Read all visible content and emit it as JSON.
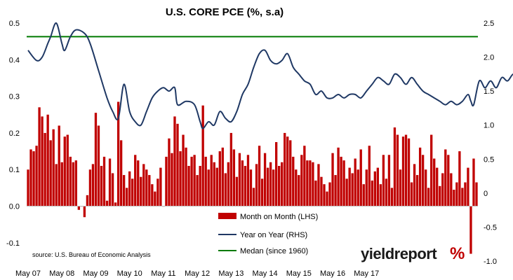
{
  "chart_data": {
    "type": "bar",
    "title": "U.S. CORE PCE (%, s.a)",
    "source": "source: U.S. Bureau of Economic Analysis",
    "logo": {
      "text": "yieldreport",
      "symbol": "%",
      "text_color": "#1a1a1a",
      "symbol_color": "#c00000",
      "symbol_accent": "#1e9e3a"
    },
    "colors": {
      "bars": "#c00000",
      "yoy": "#1f3864",
      "median": "#007a00"
    },
    "y_left": {
      "min": -0.15,
      "max": 0.5,
      "ticks": [
        "-0.1",
        "0.0",
        "0.1",
        "0.2",
        "0.3",
        "0.4",
        "0.5"
      ],
      "tick_values": [
        -0.1,
        0,
        0.1,
        0.2,
        0.3,
        0.4,
        0.5
      ]
    },
    "y_right": {
      "min": -1.0,
      "max": 2.5,
      "ticks": [
        "-1.0",
        "-0.5",
        "0",
        "0.5",
        "1.0",
        "1.5",
        "2.0",
        "2.5"
      ],
      "tick_values": [
        -1.0,
        -0.5,
        0,
        0.5,
        1.0,
        1.5,
        2.0,
        2.5
      ]
    },
    "x_ticks": [
      "May 07",
      "May 08",
      "May 09",
      "May 10",
      "May 11",
      "May 12",
      "May 13",
      "May 14",
      "May 15",
      "May 16",
      "May 17"
    ],
    "x_start": "2007-05",
    "series": [
      {
        "name": "Month on Month (LHS)",
        "kind": "bar",
        "values": [
          0.1,
          0.155,
          0.15,
          0.165,
          0.27,
          0.245,
          0.2,
          0.25,
          0.18,
          0.21,
          0.115,
          0.22,
          0.12,
          0.19,
          0.195,
          0.135,
          0.12,
          0.125,
          -0.01,
          0.0,
          -0.03,
          0.03,
          0.1,
          0.115,
          0.255,
          0.22,
          0.11,
          0.135,
          0.015,
          0.13,
          0.09,
          0.01,
          0.285,
          0.18,
          0.085,
          0.05,
          0.095,
          0.075,
          0.14,
          0.125,
          0.08,
          0.115,
          0.1,
          0.085,
          0.06,
          0.04,
          0.075,
          0.105,
          0.0,
          0.135,
          0.185,
          0.145,
          0.245,
          0.225,
          0.15,
          0.195,
          0.16,
          0.11,
          0.135,
          0.14,
          0.085,
          0.11,
          0.275,
          0.135,
          0.1,
          0.14,
          0.12,
          0.105,
          0.15,
          0.16,
          0.09,
          0.12,
          0.2,
          0.155,
          0.08,
          0.145,
          0.125,
          0.11,
          0.14,
          0.1,
          0.05,
          0.115,
          0.165,
          0.075,
          0.145,
          0.105,
          0.12,
          0.1,
          0.175,
          0.11,
          0.12,
          0.2,
          0.19,
          0.18,
          0.135,
          0.1,
          0.085,
          0.14,
          0.165,
          0.125,
          0.125,
          0.12,
          0.07,
          0.115,
          0.08,
          0.06,
          0.04,
          0.065,
          0.145,
          0.085,
          0.16,
          0.135,
          0.125,
          0.075,
          0.105,
          0.09,
          0.13,
          0.1,
          0.155,
          0.06,
          0.1,
          0.165,
          0.07,
          0.095,
          0.105,
          0.06,
          0.14,
          0.075,
          0.14,
          0.05,
          0.215,
          0.195,
          0.1,
          0.19,
          0.195,
          0.185,
          0.065,
          0.115,
          0.085,
          0.16,
          0.14,
          0.1,
          0.05,
          0.195,
          0.13,
          0.105,
          0.055,
          0.09,
          0.155,
          0.14,
          0.09,
          0.045,
          0.065,
          0.15,
          0.05,
          0.065,
          0.105,
          -0.13,
          0.13,
          0.065
        ]
      },
      {
        "name": "Year on Year (RHS)",
        "kind": "line",
        "points": [
          [
            0,
            2.1
          ],
          [
            3,
            1.95
          ],
          [
            5,
            2.0
          ],
          [
            7,
            2.2
          ],
          [
            8,
            2.3
          ],
          [
            10,
            2.5
          ],
          [
            12,
            2.2
          ],
          [
            13,
            2.1
          ],
          [
            15,
            2.3
          ],
          [
            17,
            2.4
          ],
          [
            20,
            2.35
          ],
          [
            22,
            2.2
          ],
          [
            25,
            1.8
          ],
          [
            28,
            1.4
          ],
          [
            30,
            1.2
          ],
          [
            32,
            1.1
          ],
          [
            34,
            1.6
          ],
          [
            36,
            1.2
          ],
          [
            38,
            1.05
          ],
          [
            40,
            1.0
          ],
          [
            42,
            1.2
          ],
          [
            44,
            1.4
          ],
          [
            46,
            1.5
          ],
          [
            48,
            1.55
          ],
          [
            50,
            1.5
          ],
          [
            52,
            1.55
          ],
          [
            53,
            1.3
          ],
          [
            56,
            1.35
          ],
          [
            59,
            1.3
          ],
          [
            61,
            1.05
          ],
          [
            62,
            0.95
          ],
          [
            64,
            1.05
          ],
          [
            66,
            1.0
          ],
          [
            68,
            1.2
          ],
          [
            70,
            1.1
          ],
          [
            72,
            1.05
          ],
          [
            74,
            1.2
          ],
          [
            76,
            1.45
          ],
          [
            78,
            1.6
          ],
          [
            80,
            1.85
          ],
          [
            82,
            2.05
          ],
          [
            84,
            2.1
          ],
          [
            86,
            1.95
          ],
          [
            88,
            1.9
          ],
          [
            90,
            1.95
          ],
          [
            92,
            2.05
          ],
          [
            94,
            1.85
          ],
          [
            96,
            1.75
          ],
          [
            98,
            1.65
          ],
          [
            100,
            1.6
          ],
          [
            102,
            1.45
          ],
          [
            104,
            1.5
          ],
          [
            106,
            1.4
          ],
          [
            108,
            1.4
          ],
          [
            110,
            1.45
          ],
          [
            112,
            1.4
          ],
          [
            114,
            1.45
          ],
          [
            116,
            1.45
          ],
          [
            118,
            1.4
          ],
          [
            120,
            1.5
          ],
          [
            122,
            1.6
          ],
          [
            124,
            1.7
          ],
          [
            126,
            1.65
          ],
          [
            128,
            1.6
          ],
          [
            130,
            1.75
          ],
          [
            132,
            1.7
          ],
          [
            134,
            1.6
          ],
          [
            136,
            1.7
          ],
          [
            138,
            1.6
          ],
          [
            140,
            1.5
          ],
          [
            142,
            1.45
          ],
          [
            144,
            1.4
          ],
          [
            146,
            1.35
          ],
          [
            148,
            1.3
          ],
          [
            150,
            1.35
          ],
          [
            152,
            1.3
          ],
          [
            154,
            1.35
          ],
          [
            156,
            1.45
          ],
          [
            157,
            1.35
          ],
          [
            158,
            1.3
          ],
          [
            160,
            1.65
          ],
          [
            162,
            1.55
          ],
          [
            164,
            1.65
          ],
          [
            166,
            1.55
          ],
          [
            168,
            1.7
          ],
          [
            170,
            1.65
          ],
          [
            172,
            1.75
          ],
          [
            174,
            1.7
          ],
          [
            176,
            1.6
          ],
          [
            177,
            1.55
          ],
          [
            178,
            1.75
          ],
          [
            179,
            1.8
          ],
          [
            180,
            1.75
          ],
          [
            181,
            1.55
          ],
          [
            182,
            1.5
          ],
          [
            183,
            1.45
          ],
          [
            184,
            1.4
          ]
        ]
      },
      {
        "name": "Medan (since 1960)",
        "kind": "hline",
        "value": 2.3
      }
    ],
    "legend": {
      "placement": "bottom-center"
    }
  }
}
